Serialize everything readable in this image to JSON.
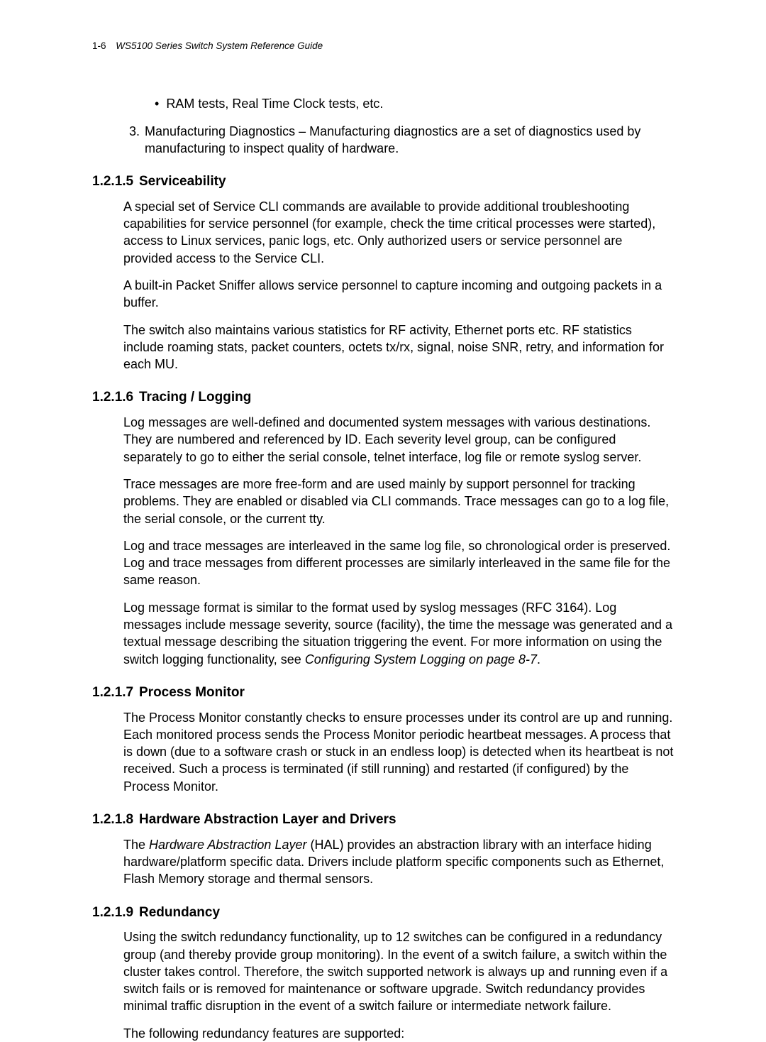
{
  "header": {
    "page_number": "1-6",
    "guide_title": "WS5100 Series Switch System Reference Guide"
  },
  "intro": {
    "bullet": "RAM tests, Real Time Clock tests, etc.",
    "numbered_index": "3.",
    "numbered_text": "Manufacturing Diagnostics – Manufacturing diagnostics are a set of diagnostics used by manufacturing to inspect quality of hardware."
  },
  "sections": {
    "serviceability": {
      "num": "1.2.1.5",
      "title": "Serviceability",
      "p1": "A special set of Service CLI commands are available to provide additional troubleshooting capabilities for service personnel (for example, check the time critical processes were started), access to Linux services, panic logs, etc. Only authorized users or service personnel are provided access to the Service CLI.",
      "p2": "A built-in Packet Sniffer allows service personnel to capture incoming and outgoing packets in a buffer.",
      "p3": "The switch also maintains various statistics for RF activity, Ethernet ports etc. RF statistics include roaming stats, packet counters, octets tx/rx, signal, noise SNR, retry, and information for each MU."
    },
    "tracing": {
      "num": "1.2.1.6",
      "title": "Tracing / Logging",
      "p1": "Log messages are well-defined and documented system messages with various destinations. They are numbered and referenced by ID. Each severity level group, can be configured separately to go to either the serial console, telnet interface, log file or remote syslog server.",
      "p2": "Trace messages are more free-form and are used mainly by support personnel for tracking problems. They are enabled or disabled via CLI commands. Trace messages can go to a log file, the serial console, or the current tty.",
      "p3": "Log and trace messages are interleaved in the same log file, so chronological order is preserved. Log and trace messages from different processes are similarly interleaved in the same file for the same reason.",
      "p4a": "Log message format is similar to the format used by syslog messages (RFC 3164). Log messages include message severity, source (facility), the time the message was generated and a textual message describing the situation triggering the event. For more information on using the switch logging functionality, see ",
      "p4b_italic": "Configuring System Logging on page 8-7",
      "p4c": "."
    },
    "process": {
      "num": "1.2.1.7",
      "title": "Process Monitor",
      "p1": "The Process Monitor constantly checks to ensure processes under its control are up and running. Each monitored process sends the Process Monitor periodic heartbeat messages. A process that is down (due to a software crash or stuck in an endless loop) is detected when its heartbeat is not received. Such a process is terminated (if still running) and restarted (if configured) by the Process Monitor."
    },
    "hal": {
      "num": "1.2.1.8",
      "title": "Hardware Abstraction Layer and Drivers",
      "p1a": "The ",
      "p1b_italic": "Hardware Abstraction Layer",
      "p1c": " (HAL) provides an abstraction library with an interface hiding hardware/platform specific data. Drivers include platform specific components such as Ethernet, Flash Memory storage and thermal sensors."
    },
    "redundancy": {
      "num": "1.2.1.9",
      "title": "Redundancy",
      "p1": "Using the switch redundancy functionality, up to 12 switches can be configured in a redundancy group (and thereby provide group monitoring). In the event of a switch failure, a switch within the cluster takes control. Therefore, the switch supported network is always up and running even if a switch fails or is removed for maintenance or software upgrade. Switch redundancy provides minimal traffic disruption in the event of a switch failure or intermediate network failure.",
      "p2": "The following redundancy features are supported:"
    }
  },
  "style": {
    "body_fontsize": 18,
    "heading_fontsize": 19,
    "header_fontsize": 13.5,
    "text_color": "#000000",
    "background_color": "#ffffff",
    "line_height": 1.35
  }
}
